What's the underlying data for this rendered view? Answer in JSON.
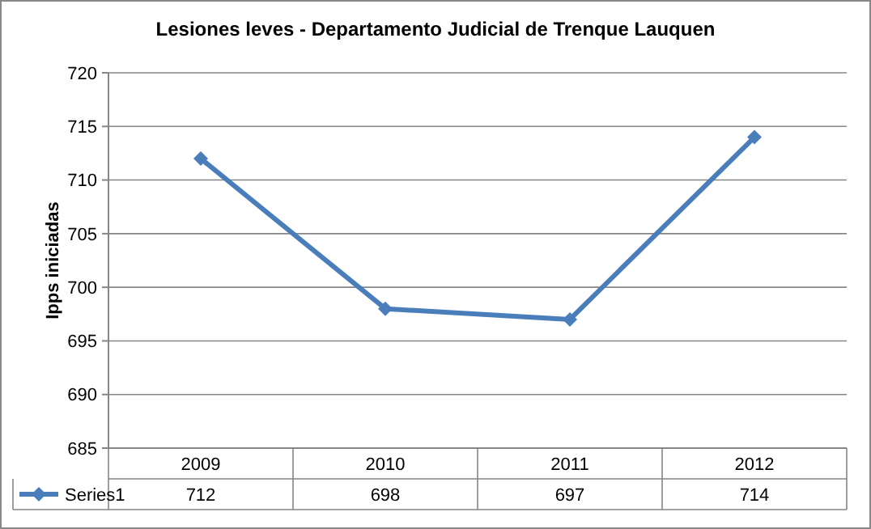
{
  "chart_data": {
    "type": "line",
    "title": "Lesiones leves - Departamento Judicial de Trenque Lauquen",
    "ylabel": "Ipps iniciadas",
    "categories": [
      "2009",
      "2010",
      "2011",
      "2012"
    ],
    "series": [
      {
        "name": "Series1",
        "color": "#4a7ebb",
        "values": [
          712,
          698,
          697,
          714
        ]
      }
    ],
    "ylim": [
      685,
      720
    ],
    "yticks": [
      685,
      690,
      695,
      700,
      705,
      710,
      715,
      720
    ],
    "grid": "y",
    "legend": "bottom",
    "data_labels": true,
    "marker": "diamond",
    "line_style": "solid"
  }
}
